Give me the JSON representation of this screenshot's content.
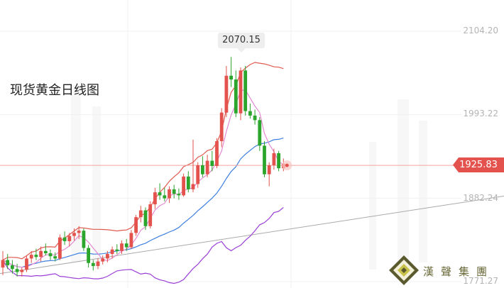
{
  "title": "现货黄金日线图",
  "peak_label": "2070.15",
  "current_price_label": "1925.83",
  "logo_text": "漢聲集團",
  "chart_data": {
    "type": "candlestick",
    "title": "现货黄金日线图",
    "y_ticks": [
      "2104.20",
      "1993.22",
      "1882.24",
      "1771.27"
    ],
    "ylim": [
      1771.27,
      2104.2
    ],
    "current_price": 1925.83,
    "peak_high": 2070.15,
    "colors": {
      "up": "#e3524c",
      "down": "#2ca52c",
      "bb_upper": "#e05a4f",
      "bb_mid": "#3f7fe0",
      "bb_lower": "#9b3fd6",
      "ma": "#e48ad2",
      "trend": "#aaaaaa"
    },
    "candles": [
      {
        "o": 1790,
        "h": 1812,
        "l": 1780,
        "c": 1800
      },
      {
        "o": 1800,
        "h": 1808,
        "l": 1788,
        "c": 1793
      },
      {
        "o": 1793,
        "h": 1800,
        "l": 1782,
        "c": 1788
      },
      {
        "o": 1788,
        "h": 1795,
        "l": 1778,
        "c": 1784
      },
      {
        "o": 1784,
        "h": 1790,
        "l": 1778,
        "c": 1787
      },
      {
        "o": 1787,
        "h": 1805,
        "l": 1784,
        "c": 1802
      },
      {
        "o": 1802,
        "h": 1812,
        "l": 1796,
        "c": 1807
      },
      {
        "o": 1807,
        "h": 1815,
        "l": 1800,
        "c": 1804
      },
      {
        "o": 1804,
        "h": 1818,
        "l": 1798,
        "c": 1812
      },
      {
        "o": 1812,
        "h": 1822,
        "l": 1806,
        "c": 1809
      },
      {
        "o": 1809,
        "h": 1814,
        "l": 1800,
        "c": 1805
      },
      {
        "o": 1805,
        "h": 1810,
        "l": 1798,
        "c": 1802
      },
      {
        "o": 1802,
        "h": 1834,
        "l": 1800,
        "c": 1830
      },
      {
        "o": 1830,
        "h": 1838,
        "l": 1820,
        "c": 1825
      },
      {
        "o": 1825,
        "h": 1836,
        "l": 1818,
        "c": 1832
      },
      {
        "o": 1832,
        "h": 1842,
        "l": 1826,
        "c": 1836
      },
      {
        "o": 1836,
        "h": 1845,
        "l": 1828,
        "c": 1839
      },
      {
        "o": 1839,
        "h": 1842,
        "l": 1812,
        "c": 1816
      },
      {
        "o": 1816,
        "h": 1820,
        "l": 1790,
        "c": 1796
      },
      {
        "o": 1796,
        "h": 1800,
        "l": 1786,
        "c": 1792
      },
      {
        "o": 1792,
        "h": 1802,
        "l": 1788,
        "c": 1798
      },
      {
        "o": 1798,
        "h": 1806,
        "l": 1794,
        "c": 1802
      },
      {
        "o": 1802,
        "h": 1812,
        "l": 1797,
        "c": 1808
      },
      {
        "o": 1808,
        "h": 1818,
        "l": 1802,
        "c": 1814
      },
      {
        "o": 1814,
        "h": 1821,
        "l": 1808,
        "c": 1812
      },
      {
        "o": 1812,
        "h": 1826,
        "l": 1808,
        "c": 1822
      },
      {
        "o": 1822,
        "h": 1828,
        "l": 1812,
        "c": 1817
      },
      {
        "o": 1817,
        "h": 1840,
        "l": 1815,
        "c": 1836
      },
      {
        "o": 1836,
        "h": 1860,
        "l": 1832,
        "c": 1857
      },
      {
        "o": 1857,
        "h": 1872,
        "l": 1850,
        "c": 1866
      },
      {
        "o": 1866,
        "h": 1870,
        "l": 1840,
        "c": 1845
      },
      {
        "o": 1845,
        "h": 1878,
        "l": 1842,
        "c": 1874
      },
      {
        "o": 1874,
        "h": 1896,
        "l": 1868,
        "c": 1890
      },
      {
        "o": 1890,
        "h": 1902,
        "l": 1880,
        "c": 1886
      },
      {
        "o": 1886,
        "h": 1896,
        "l": 1878,
        "c": 1882
      },
      {
        "o": 1882,
        "h": 1898,
        "l": 1876,
        "c": 1894
      },
      {
        "o": 1894,
        "h": 1900,
        "l": 1882,
        "c": 1888
      },
      {
        "o": 1888,
        "h": 1895,
        "l": 1880,
        "c": 1886
      },
      {
        "o": 1886,
        "h": 1915,
        "l": 1884,
        "c": 1911
      },
      {
        "o": 1911,
        "h": 1918,
        "l": 1890,
        "c": 1894
      },
      {
        "o": 1894,
        "h": 1960,
        "l": 1890,
        "c": 1901
      },
      {
        "o": 1901,
        "h": 1930,
        "l": 1896,
        "c": 1926
      },
      {
        "o": 1926,
        "h": 1938,
        "l": 1910,
        "c": 1914
      },
      {
        "o": 1914,
        "h": 1940,
        "l": 1910,
        "c": 1932
      },
      {
        "o": 1932,
        "h": 1945,
        "l": 1918,
        "c": 1925
      },
      {
        "o": 1925,
        "h": 1962,
        "l": 1922,
        "c": 1958
      },
      {
        "o": 1958,
        "h": 2002,
        "l": 1950,
        "c": 1996
      },
      {
        "o": 1996,
        "h": 2058,
        "l": 1990,
        "c": 2045
      },
      {
        "o": 2045,
        "h": 2070,
        "l": 2030,
        "c": 2040
      },
      {
        "o": 2040,
        "h": 2052,
        "l": 1990,
        "c": 1995
      },
      {
        "o": 1995,
        "h": 2056,
        "l": 1986,
        "c": 2052
      },
      {
        "o": 2052,
        "h": 2058,
        "l": 1992,
        "c": 1998
      },
      {
        "o": 1998,
        "h": 2008,
        "l": 1988,
        "c": 1992
      },
      {
        "o": 1992,
        "h": 2000,
        "l": 1980,
        "c": 1986
      },
      {
        "o": 1986,
        "h": 1990,
        "l": 1945,
        "c": 1952
      },
      {
        "o": 1952,
        "h": 1958,
        "l": 1910,
        "c": 1914
      },
      {
        "o": 1914,
        "h": 1930,
        "l": 1898,
        "c": 1926
      },
      {
        "o": 1926,
        "h": 1948,
        "l": 1920,
        "c": 1942
      },
      {
        "o": 1942,
        "h": 1945,
        "l": 1918,
        "c": 1922
      },
      {
        "o": 1922,
        "h": 1935,
        "l": 1918,
        "c": 1928
      }
    ]
  }
}
